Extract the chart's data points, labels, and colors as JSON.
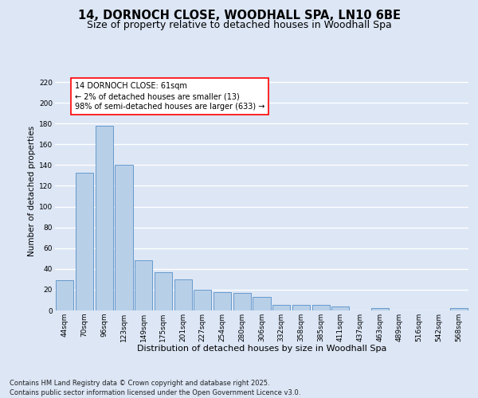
{
  "title_line1": "14, DORNOCH CLOSE, WOODHALL SPA, LN10 6BE",
  "title_line2": "Size of property relative to detached houses in Woodhall Spa",
  "xlabel": "Distribution of detached houses by size in Woodhall Spa",
  "ylabel": "Number of detached properties",
  "categories": [
    "44sqm",
    "70sqm",
    "96sqm",
    "123sqm",
    "149sqm",
    "175sqm",
    "201sqm",
    "227sqm",
    "254sqm",
    "280sqm",
    "306sqm",
    "332sqm",
    "358sqm",
    "385sqm",
    "411sqm",
    "437sqm",
    "463sqm",
    "489sqm",
    "516sqm",
    "542sqm",
    "568sqm"
  ],
  "values": [
    29,
    133,
    178,
    140,
    48,
    37,
    30,
    20,
    18,
    17,
    13,
    5,
    5,
    5,
    4,
    0,
    2,
    0,
    0,
    0,
    2
  ],
  "bar_color": "#b8cfe8",
  "bar_edge_color": "#6699cc",
  "ylim": [
    0,
    230
  ],
  "yticks": [
    0,
    20,
    40,
    60,
    80,
    100,
    120,
    140,
    160,
    180,
    200,
    220
  ],
  "bg_color": "#dce6f5",
  "plot_bg_color": "#dce6f5",
  "grid_color": "#ffffff",
  "annotation_box_text": "14 DORNOCH CLOSE: 61sqm\n← 2% of detached houses are smaller (13)\n98% of semi-detached houses are larger (633) →",
  "footer_line1": "Contains HM Land Registry data © Crown copyright and database right 2025.",
  "footer_line2": "Contains public sector information licensed under the Open Government Licence v3.0.",
  "annotation_fontsize": 7.0,
  "title1_fontsize": 10.5,
  "title2_fontsize": 9.0,
  "tick_fontsize": 6.5,
  "xlabel_fontsize": 8.0,
  "ylabel_fontsize": 7.5,
  "footer_fontsize": 6.0
}
